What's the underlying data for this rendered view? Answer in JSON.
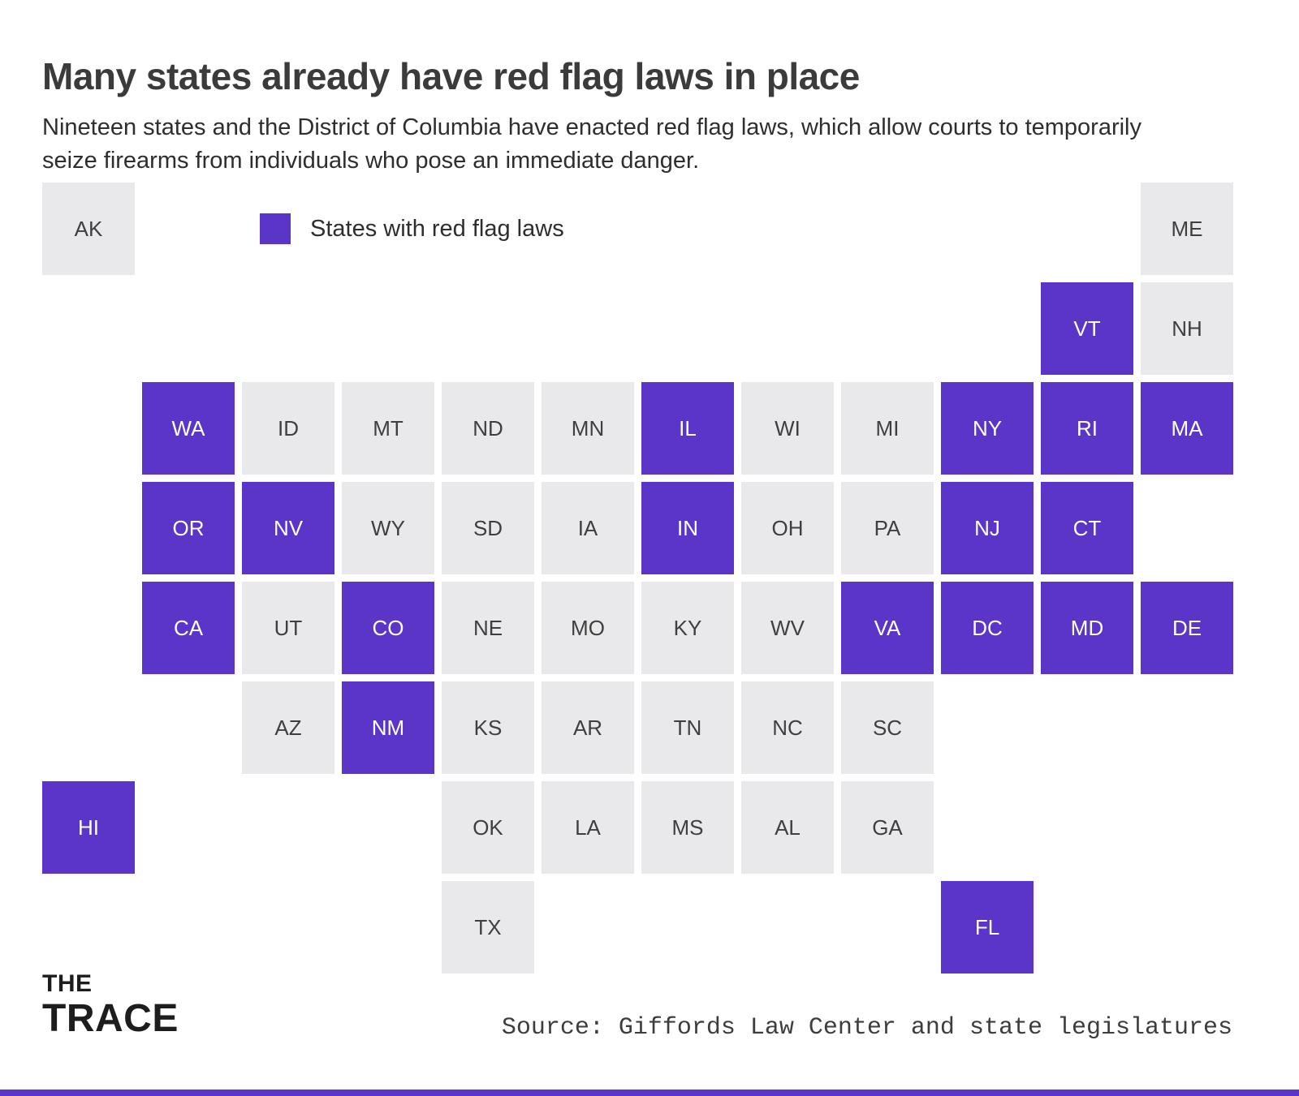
{
  "header": {
    "title": "Many states already have red flag laws in place",
    "subtitle": "Nineteen states and the District of Columbia have enacted red flag laws, which allow courts to temporarily seize firearms from individuals who pose an immediate danger."
  },
  "legend": {
    "label": "States with red flag laws"
  },
  "colors": {
    "flag": "#5A35C8",
    "no_flag": "#E9E9EB"
  },
  "footer": {
    "logo_line1": "THE",
    "logo_line2": "TRACE",
    "source": "Source: Giffords Law Center and state legislatures"
  },
  "chart_data": {
    "type": "heatmap",
    "subtype": "state-tile-grid-map",
    "title": "Many states already have red flag laws in place",
    "legend_entries": [
      "States with red flag laws"
    ],
    "legend_position": "top-left",
    "states_with_red_flag_laws": [
      "VT",
      "WA",
      "IL",
      "NY",
      "RI",
      "MA",
      "OR",
      "NV",
      "IN",
      "NJ",
      "CT",
      "CA",
      "CO",
      "VA",
      "DC",
      "MD",
      "DE",
      "NM",
      "HI",
      "FL"
    ],
    "states_without_red_flag_laws": [
      "AK",
      "ME",
      "NH",
      "ID",
      "MT",
      "ND",
      "MN",
      "WI",
      "MI",
      "WY",
      "SD",
      "IA",
      "OH",
      "PA",
      "UT",
      "NE",
      "MO",
      "KY",
      "WV",
      "AZ",
      "KS",
      "AR",
      "TN",
      "NC",
      "SC",
      "OK",
      "LA",
      "MS",
      "AL",
      "GA",
      "TX"
    ],
    "tiles": [
      {
        "label": "AK",
        "col": 0,
        "row": 0,
        "flag": false
      },
      {
        "label": "ME",
        "col": 11,
        "row": 0,
        "flag": false
      },
      {
        "label": "VT",
        "col": 10,
        "row": 1,
        "flag": true
      },
      {
        "label": "NH",
        "col": 11,
        "row": 1,
        "flag": false
      },
      {
        "label": "WA",
        "col": 1,
        "row": 2,
        "flag": true
      },
      {
        "label": "ID",
        "col": 2,
        "row": 2,
        "flag": false
      },
      {
        "label": "MT",
        "col": 3,
        "row": 2,
        "flag": false
      },
      {
        "label": "ND",
        "col": 4,
        "row": 2,
        "flag": false
      },
      {
        "label": "MN",
        "col": 5,
        "row": 2,
        "flag": false
      },
      {
        "label": "IL",
        "col": 6,
        "row": 2,
        "flag": true
      },
      {
        "label": "WI",
        "col": 7,
        "row": 2,
        "flag": false
      },
      {
        "label": "MI",
        "col": 8,
        "row": 2,
        "flag": false
      },
      {
        "label": "NY",
        "col": 9,
        "row": 2,
        "flag": true
      },
      {
        "label": "RI",
        "col": 10,
        "row": 2,
        "flag": true
      },
      {
        "label": "MA",
        "col": 11,
        "row": 2,
        "flag": true
      },
      {
        "label": "OR",
        "col": 1,
        "row": 3,
        "flag": true
      },
      {
        "label": "NV",
        "col": 2,
        "row": 3,
        "flag": true
      },
      {
        "label": "WY",
        "col": 3,
        "row": 3,
        "flag": false
      },
      {
        "label": "SD",
        "col": 4,
        "row": 3,
        "flag": false
      },
      {
        "label": "IA",
        "col": 5,
        "row": 3,
        "flag": false
      },
      {
        "label": "IN",
        "col": 6,
        "row": 3,
        "flag": true
      },
      {
        "label": "OH",
        "col": 7,
        "row": 3,
        "flag": false
      },
      {
        "label": "PA",
        "col": 8,
        "row": 3,
        "flag": false
      },
      {
        "label": "NJ",
        "col": 9,
        "row": 3,
        "flag": true
      },
      {
        "label": "CT",
        "col": 10,
        "row": 3,
        "flag": true
      },
      {
        "label": "CA",
        "col": 1,
        "row": 4,
        "flag": true
      },
      {
        "label": "UT",
        "col": 2,
        "row": 4,
        "flag": false
      },
      {
        "label": "CO",
        "col": 3,
        "row": 4,
        "flag": true
      },
      {
        "label": "NE",
        "col": 4,
        "row": 4,
        "flag": false
      },
      {
        "label": "MO",
        "col": 5,
        "row": 4,
        "flag": false
      },
      {
        "label": "KY",
        "col": 6,
        "row": 4,
        "flag": false
      },
      {
        "label": "WV",
        "col": 7,
        "row": 4,
        "flag": false
      },
      {
        "label": "VA",
        "col": 8,
        "row": 4,
        "flag": true
      },
      {
        "label": "DC",
        "col": 9,
        "row": 4,
        "flag": true
      },
      {
        "label": "MD",
        "col": 10,
        "row": 4,
        "flag": true
      },
      {
        "label": "DE",
        "col": 11,
        "row": 4,
        "flag": true
      },
      {
        "label": "AZ",
        "col": 2,
        "row": 5,
        "flag": false
      },
      {
        "label": "NM",
        "col": 3,
        "row": 5,
        "flag": true
      },
      {
        "label": "KS",
        "col": 4,
        "row": 5,
        "flag": false
      },
      {
        "label": "AR",
        "col": 5,
        "row": 5,
        "flag": false
      },
      {
        "label": "TN",
        "col": 6,
        "row": 5,
        "flag": false
      },
      {
        "label": "NC",
        "col": 7,
        "row": 5,
        "flag": false
      },
      {
        "label": "SC",
        "col": 8,
        "row": 5,
        "flag": false
      },
      {
        "label": "HI",
        "col": 0,
        "row": 6,
        "flag": true
      },
      {
        "label": "OK",
        "col": 4,
        "row": 6,
        "flag": false
      },
      {
        "label": "LA",
        "col": 5,
        "row": 6,
        "flag": false
      },
      {
        "label": "MS",
        "col": 6,
        "row": 6,
        "flag": false
      },
      {
        "label": "AL",
        "col": 7,
        "row": 6,
        "flag": false
      },
      {
        "label": "GA",
        "col": 8,
        "row": 6,
        "flag": false
      },
      {
        "label": "TX",
        "col": 4,
        "row": 7,
        "flag": false
      },
      {
        "label": "FL",
        "col": 9,
        "row": 7,
        "flag": true
      }
    ]
  }
}
